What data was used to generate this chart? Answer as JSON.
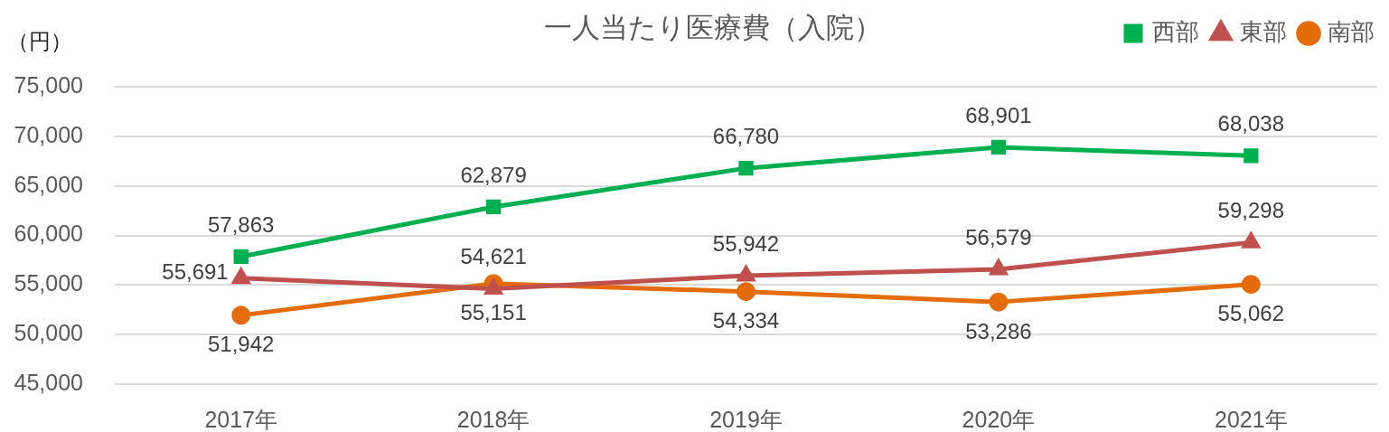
{
  "chart_data": {
    "type": "line",
    "title": "一人当たり医療費（入院）",
    "ylabel": "（円）",
    "categories": [
      "2017年",
      "2018年",
      "2019年",
      "2020年",
      "2021年"
    ],
    "series": [
      {
        "name": "西部",
        "color": "#00b050",
        "marker": "square",
        "values": [
          57863,
          62879,
          66780,
          68901,
          68038
        ],
        "value_labels": [
          "57,863",
          "62,879",
          "66,780",
          "68,901",
          "68,038"
        ]
      },
      {
        "name": "東部",
        "color": "#c0504d",
        "marker": "triangle",
        "values": [
          55691,
          54621,
          55942,
          56579,
          59298
        ],
        "value_labels": [
          "55,691",
          "54,621",
          "55,942",
          "56,579",
          "59,298"
        ]
      },
      {
        "name": "南部",
        "color": "#e46c0a",
        "marker": "circle",
        "values": [
          51942,
          55151,
          54334,
          53286,
          55062
        ],
        "value_labels": [
          "51,942",
          "55,151",
          "54,334",
          "53,286",
          "55,062"
        ]
      }
    ],
    "ylim": [
      45000,
      75000
    ],
    "yticks": [
      {
        "value": 45000,
        "label": "45,000"
      },
      {
        "value": 50000,
        "label": "50,000"
      },
      {
        "value": 55000,
        "label": "55,000"
      },
      {
        "value": 60000,
        "label": "60,000"
      },
      {
        "value": 65000,
        "label": "65,000"
      },
      {
        "value": 70000,
        "label": "70,000"
      },
      {
        "value": 75000,
        "label": "75,000"
      }
    ],
    "grid": "y",
    "legend": "top right",
    "line_style": "solid"
  }
}
